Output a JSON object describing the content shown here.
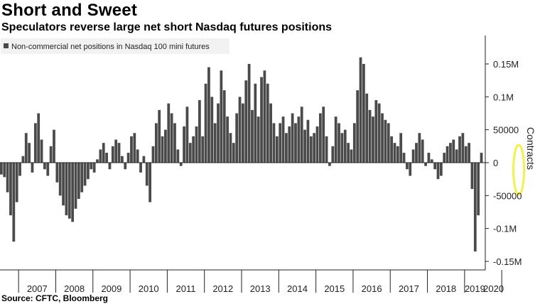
{
  "header": {
    "title": "Short and Sweet",
    "subtitle": "Speculators reverse large net short Nasdaq futures positions"
  },
  "footer": {
    "source": "Source: CFTC, Bloomberg"
  },
  "colors": {
    "bar": "#4a4a4a",
    "highlight": "#f5f04d",
    "axis": "#222222",
    "zero_line": "#222222"
  },
  "chart_data": {
    "type": "bar",
    "legend": {
      "label": "Non-commercial net positions in Nasdaq 100 mini futures",
      "position": "top-left"
    },
    "ylabel": "Contracts",
    "ylim": [
      -160000,
      190000
    ],
    "y_ticks": [
      {
        "value": 150000,
        "label": "0.15M"
      },
      {
        "value": 100000,
        "label": "0.1M"
      },
      {
        "value": 50000,
        "label": "50000"
      },
      {
        "value": 0,
        "label": "0"
      },
      {
        "value": -50000,
        "label": "-50000"
      },
      {
        "value": -100000,
        "label": "-0.1M"
      },
      {
        "value": -150000,
        "label": "-0.15M"
      }
    ],
    "x_categories": [
      "2007",
      "2008",
      "2009",
      "2010",
      "2011",
      "2012",
      "2013",
      "2014",
      "2015",
      "2016",
      "2017",
      "2018",
      "2019",
      "2020"
    ],
    "grid": false,
    "series": [
      {
        "name": "Non-commercial net positions in Nasdaq 100 mini futures",
        "period": "monthly",
        "start": "2006-07",
        "values": [
          -18000,
          -22000,
          -45000,
          -80000,
          -120000,
          -60000,
          -20000,
          10000,
          45000,
          30000,
          -15000,
          60000,
          75000,
          35000,
          -10000,
          -20000,
          25000,
          50000,
          -30000,
          -50000,
          -65000,
          -80000,
          -85000,
          -90000,
          -70000,
          -55000,
          -45000,
          -35000,
          -25000,
          -10000,
          -15000,
          5000,
          20000,
          30000,
          15000,
          -10000,
          25000,
          35000,
          30000,
          10000,
          -10000,
          15000,
          40000,
          45000,
          20000,
          -15000,
          10000,
          -35000,
          -60000,
          25000,
          60000,
          80000,
          40000,
          50000,
          90000,
          75000,
          60000,
          20000,
          -5000,
          55000,
          85000,
          30000,
          40000,
          55000,
          95000,
          40000,
          120000,
          145000,
          100000,
          60000,
          90000,
          140000,
          110000,
          70000,
          45000,
          30000,
          75000,
          100000,
          90000,
          125000,
          150000,
          80000,
          120000,
          70000,
          130000,
          140000,
          120000,
          90000,
          60000,
          40000,
          60000,
          70000,
          45000,
          55000,
          75000,
          60000,
          70000,
          85000,
          50000,
          65000,
          40000,
          45000,
          55000,
          75000,
          85000,
          40000,
          -5000,
          25000,
          70000,
          60000,
          45000,
          50000,
          30000,
          20000,
          60000,
          110000,
          160000,
          150000,
          105000,
          80000,
          70000,
          95000,
          90000,
          75000,
          65000,
          60000,
          40000,
          30000,
          25000,
          45000,
          15000,
          -10000,
          -20000,
          20000,
          30000,
          45000,
          35000,
          -5000,
          15000,
          5000,
          -10000,
          -25000,
          -20000,
          15000,
          25000,
          30000,
          35000,
          20000,
          40000,
          45000,
          25000,
          30000,
          -40000,
          -135000,
          -80000,
          15000
        ],
        "highlight": {
          "label": "2020",
          "from_index": 165,
          "to_index": 169
        }
      }
    ]
  }
}
